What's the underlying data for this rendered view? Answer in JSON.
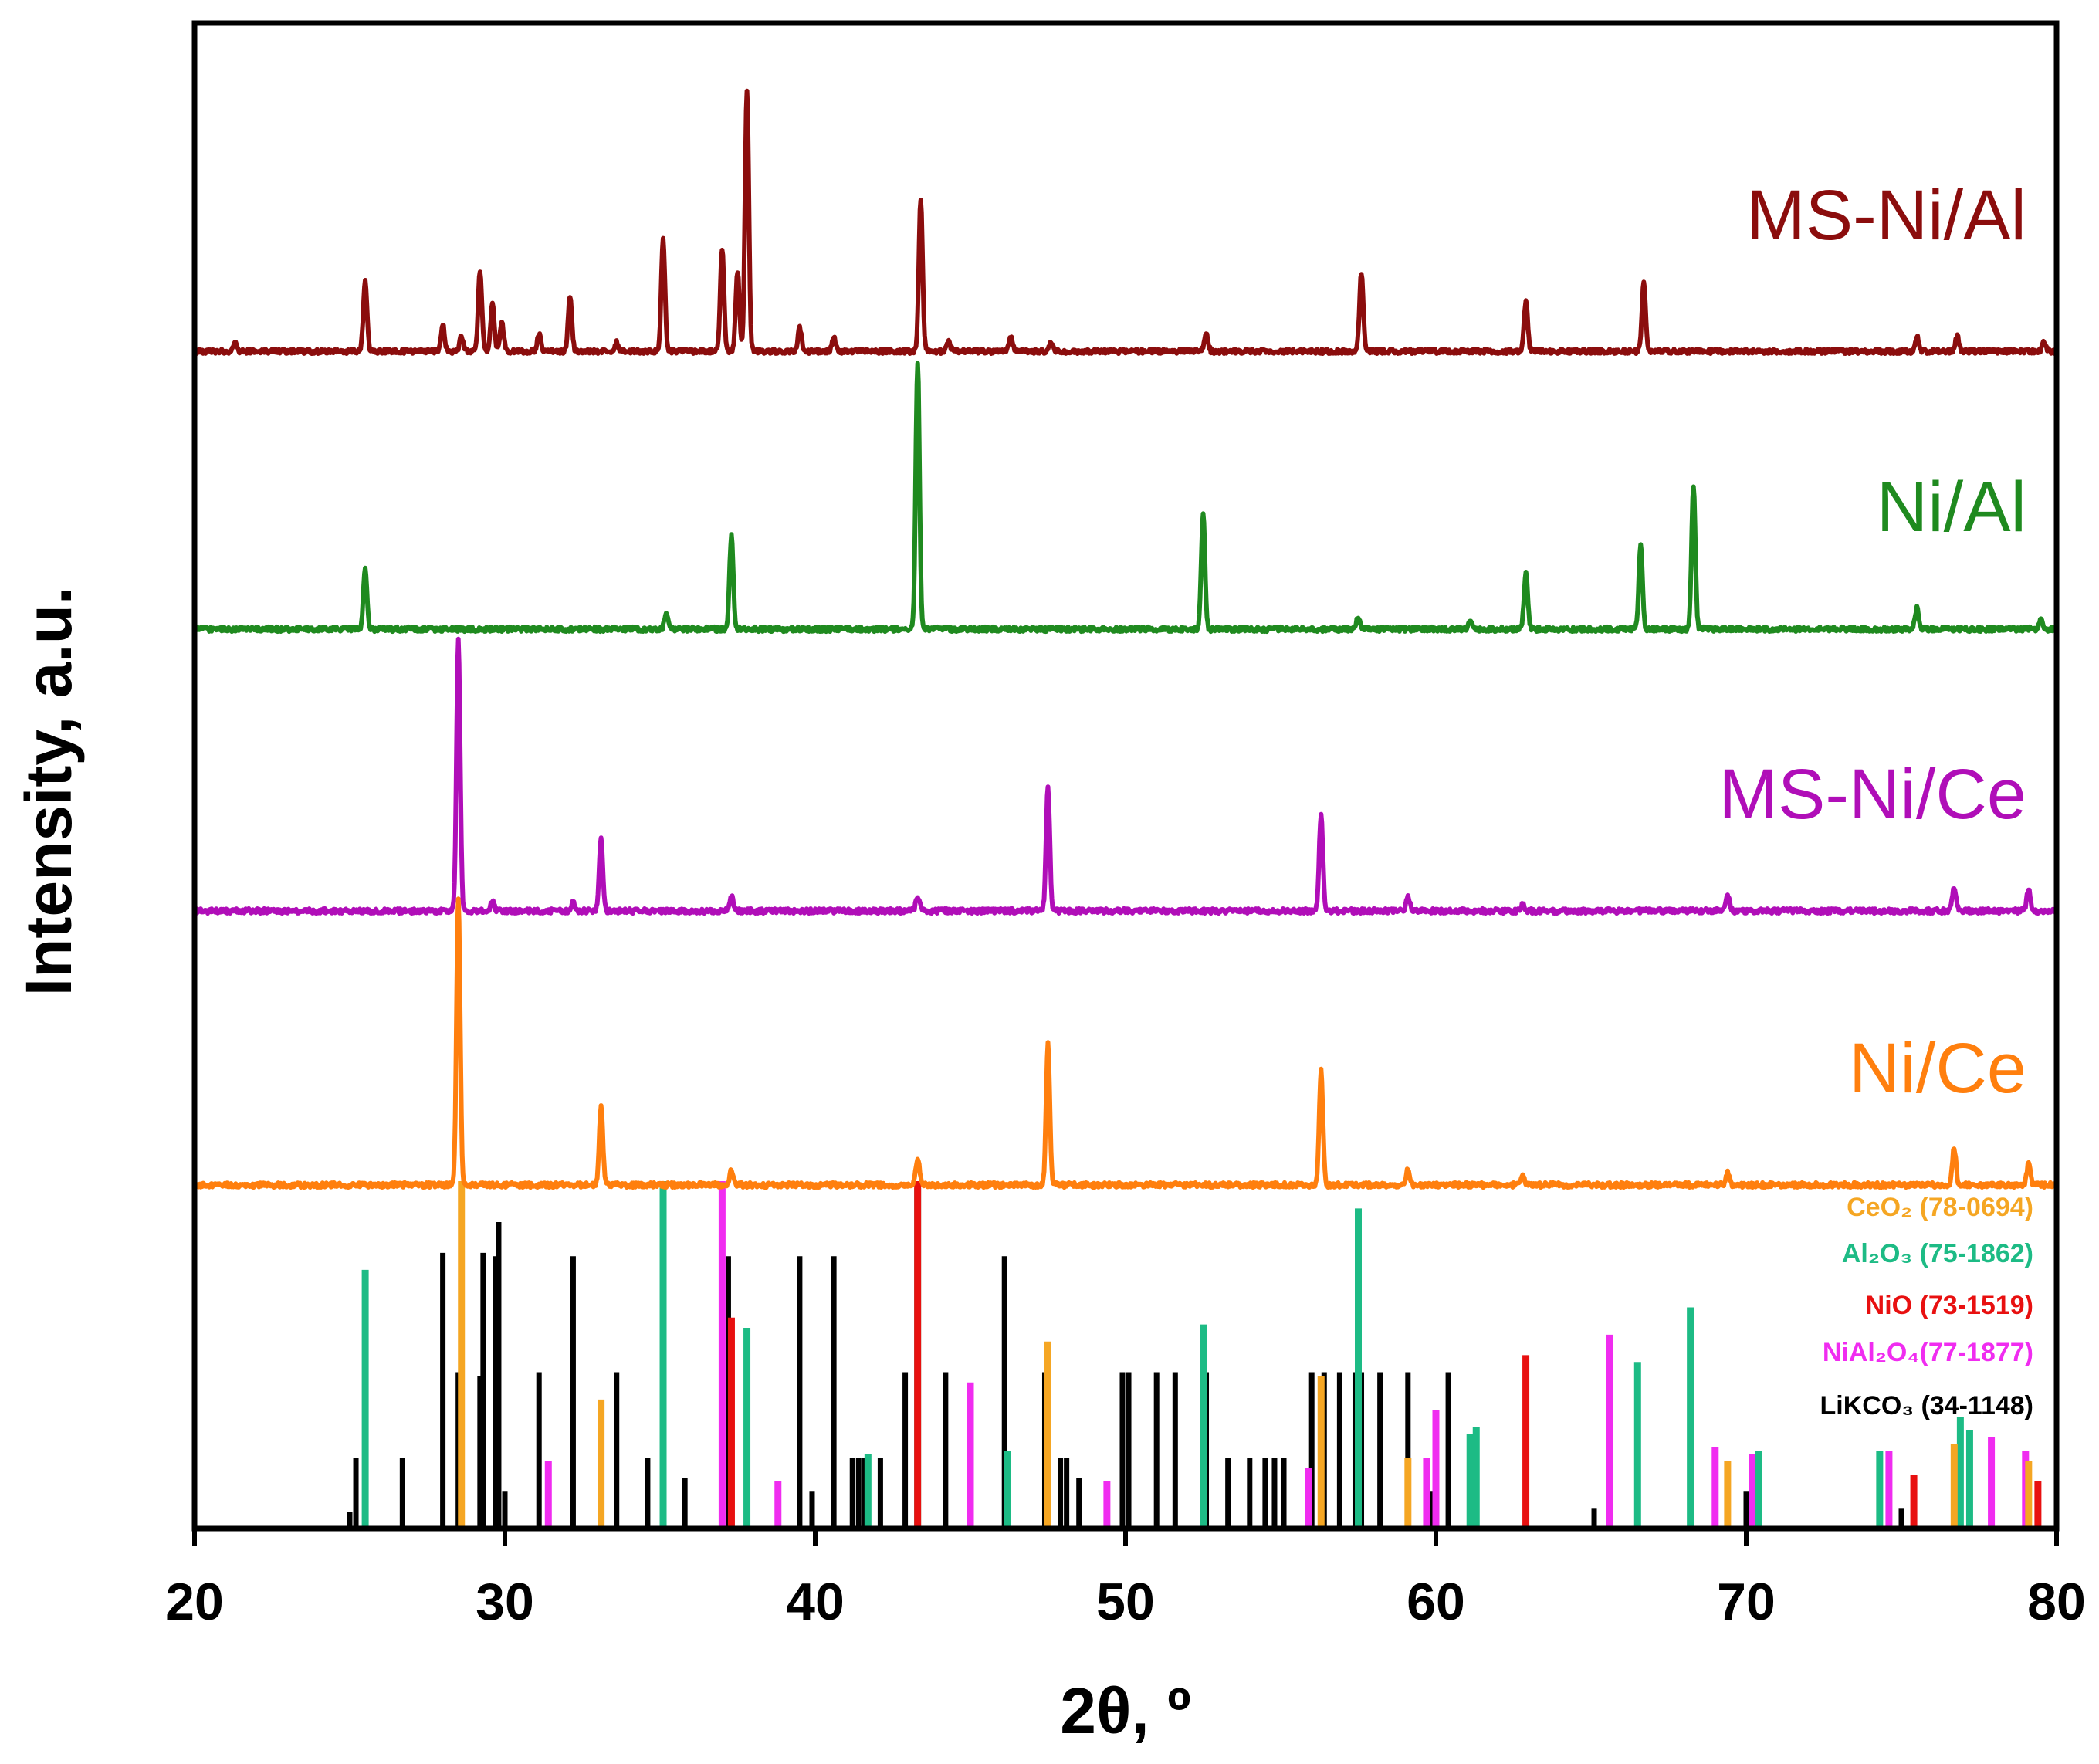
{
  "chart_data": {
    "type": "line",
    "title": "",
    "xlabel": "2θ, º",
    "ylabel": "Intensity, a.u.",
    "xlim": [
      20,
      80
    ],
    "xticks": [
      20,
      30,
      40,
      50,
      60,
      70,
      80
    ],
    "yticks": [],
    "series": [
      {
        "name": "MS-Ni/Al",
        "color": "#8b0d0d",
        "baseline": 3,
        "peaks": [
          [
            21.3,
            0.3
          ],
          [
            25.5,
            2.4
          ],
          [
            28.0,
            0.9
          ],
          [
            28.6,
            0.5
          ],
          [
            29.2,
            2.7
          ],
          [
            29.6,
            1.6
          ],
          [
            29.9,
            1.0
          ],
          [
            31.1,
            0.6
          ],
          [
            32.1,
            1.9
          ],
          [
            33.6,
            0.3
          ],
          [
            35.1,
            3.8
          ],
          [
            37.0,
            3.5
          ],
          [
            37.5,
            2.7
          ],
          [
            37.8,
            8.9
          ],
          [
            39.5,
            0.8
          ],
          [
            40.6,
            0.5
          ],
          [
            43.4,
            5.2
          ],
          [
            44.3,
            0.3
          ],
          [
            46.3,
            0.5
          ],
          [
            47.6,
            0.3
          ],
          [
            52.6,
            0.6
          ],
          [
            57.6,
            2.7
          ],
          [
            62.9,
            1.7
          ],
          [
            66.7,
            2.3
          ],
          [
            75.5,
            0.5
          ],
          [
            76.8,
            0.5
          ],
          [
            79.6,
            0.3
          ]
        ]
      },
      {
        "name": "Ni/Al",
        "color": "#1f8a1f",
        "baseline": 2,
        "peaks": [
          [
            25.5,
            2.0
          ],
          [
            35.2,
            0.5
          ],
          [
            37.3,
            3.1
          ],
          [
            43.3,
            8.9
          ],
          [
            52.5,
            3.9
          ],
          [
            57.5,
            0.4
          ],
          [
            61.1,
            0.3
          ],
          [
            62.9,
            1.9
          ],
          [
            66.6,
            2.8
          ],
          [
            68.3,
            4.7
          ],
          [
            75.5,
            0.7
          ],
          [
            79.5,
            0.4
          ]
        ]
      },
      {
        "name": "MS-Ni/Ce",
        "color": "#b00eb8",
        "baseline": 1,
        "peaks": [
          [
            28.5,
            9.0
          ],
          [
            29.6,
            0.3
          ],
          [
            32.2,
            0.3
          ],
          [
            33.1,
            2.4
          ],
          [
            37.3,
            0.5
          ],
          [
            43.3,
            0.5
          ],
          [
            47.5,
            4.1
          ],
          [
            56.3,
            3.2
          ],
          [
            59.1,
            0.5
          ],
          [
            62.8,
            0.2
          ],
          [
            69.4,
            0.5
          ],
          [
            76.7,
            0.8
          ],
          [
            79.1,
            0.7
          ]
        ]
      },
      {
        "name": "Ni/Ce",
        "color": "#ff7f0e",
        "baseline": 0,
        "peaks": [
          [
            28.5,
            9.5
          ],
          [
            33.1,
            2.6
          ],
          [
            37.3,
            0.5
          ],
          [
            43.3,
            0.9
          ],
          [
            47.5,
            4.7
          ],
          [
            56.3,
            3.8
          ],
          [
            59.1,
            0.5
          ],
          [
            62.8,
            0.3
          ],
          [
            69.4,
            0.4
          ],
          [
            76.7,
            1.2
          ],
          [
            79.1,
            0.7
          ]
        ]
      }
    ],
    "reference_patterns": [
      {
        "label": "CeO₂ (78-0694)",
        "color": "#f5a623",
        "lines": [
          [
            28.6,
            100
          ],
          [
            33.1,
            36
          ],
          [
            47.5,
            53
          ],
          [
            56.3,
            43
          ],
          [
            59.1,
            19
          ],
          [
            69.4,
            18
          ],
          [
            76.7,
            23
          ],
          [
            79.1,
            18
          ]
        ]
      },
      {
        "label": "Al₂O₃ (75-1862)",
        "color": "#1dbb85",
        "lines": [
          [
            25.5,
            74
          ],
          [
            35.1,
            100
          ],
          [
            37.8,
            57
          ],
          [
            41.7,
            20
          ],
          [
            43.3,
            98
          ],
          [
            46.2,
            21
          ],
          [
            52.5,
            58
          ],
          [
            57.5,
            92
          ],
          [
            61.1,
            26
          ],
          [
            61.3,
            28
          ],
          [
            66.5,
            47
          ],
          [
            68.2,
            63
          ],
          [
            70.4,
            21
          ],
          [
            74.3,
            21
          ],
          [
            76.9,
            31
          ],
          [
            77.2,
            27
          ]
        ]
      },
      {
        "label": "NiO (73-1519)",
        "color": "#e81010",
        "lines": [
          [
            37.3,
            60
          ],
          [
            43.3,
            100
          ],
          [
            62.9,
            49
          ],
          [
            75.4,
            14
          ],
          [
            79.4,
            12
          ]
        ]
      },
      {
        "label": "NiAl₂O₄(77-1877)",
        "color": "#f02cf0",
        "lines": [
          [
            31.4,
            18
          ],
          [
            37.0,
            100
          ],
          [
            38.8,
            12
          ],
          [
            45.0,
            41
          ],
          [
            49.4,
            12
          ],
          [
            55.9,
            16
          ],
          [
            59.7,
            19
          ],
          [
            60.0,
            33
          ],
          [
            65.6,
            55
          ],
          [
            69.0,
            22
          ],
          [
            70.2,
            20
          ],
          [
            74.6,
            21
          ],
          [
            77.9,
            25
          ],
          [
            79.0,
            21
          ]
        ]
      },
      {
        "label": "LiKCO₃ (34-1148)",
        "color": "#000000",
        "lines": [
          [
            25.0,
            3
          ],
          [
            25.2,
            19
          ],
          [
            25.5,
            3
          ],
          [
            26.7,
            19
          ],
          [
            28.0,
            79
          ],
          [
            28.5,
            44
          ],
          [
            29.2,
            43
          ],
          [
            29.3,
            79
          ],
          [
            29.7,
            78
          ],
          [
            29.8,
            88
          ],
          [
            30.0,
            9
          ],
          [
            31.1,
            44
          ],
          [
            32.2,
            78
          ],
          [
            33.6,
            44
          ],
          [
            34.6,
            19
          ],
          [
            35.8,
            13
          ],
          [
            37.2,
            78
          ],
          [
            39.5,
            78
          ],
          [
            39.9,
            9
          ],
          [
            40.6,
            78
          ],
          [
            41.2,
            19
          ],
          [
            41.4,
            19
          ],
          [
            41.6,
            19
          ],
          [
            42.1,
            19
          ],
          [
            42.9,
            44
          ],
          [
            44.2,
            44
          ],
          [
            46.1,
            78
          ],
          [
            47.4,
            44
          ],
          [
            47.9,
            19
          ],
          [
            48.1,
            19
          ],
          [
            48.5,
            13
          ],
          [
            49.9,
            44
          ],
          [
            50.1,
            44
          ],
          [
            51.0,
            44
          ],
          [
            51.6,
            44
          ],
          [
            52.6,
            44
          ],
          [
            53.3,
            19
          ],
          [
            54.0,
            19
          ],
          [
            54.5,
            19
          ],
          [
            54.8,
            19
          ],
          [
            55.1,
            19
          ],
          [
            56.0,
            44
          ],
          [
            56.4,
            44
          ],
          [
            56.9,
            44
          ],
          [
            57.4,
            44
          ],
          [
            57.6,
            44
          ],
          [
            58.2,
            44
          ],
          [
            59.1,
            44
          ],
          [
            59.9,
            9
          ],
          [
            60.4,
            44
          ],
          [
            65.1,
            4
          ],
          [
            70.0,
            9
          ],
          [
            75.0,
            4
          ]
        ]
      }
    ]
  }
}
